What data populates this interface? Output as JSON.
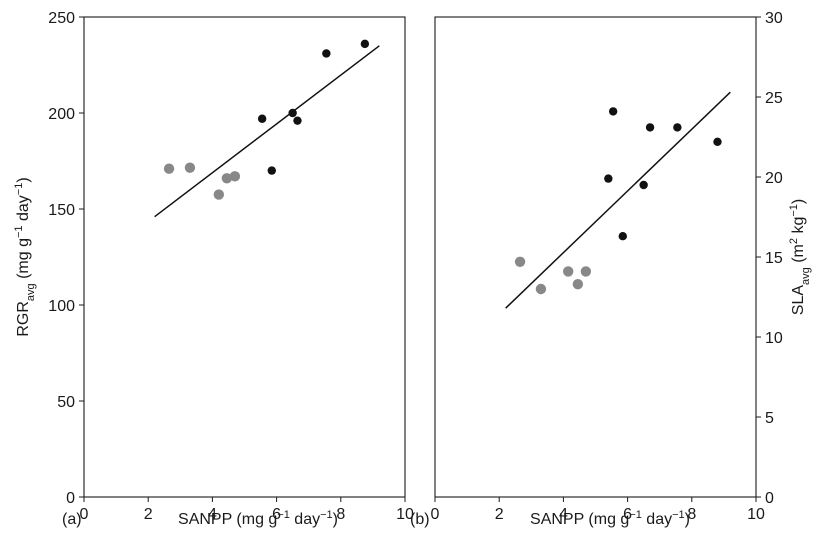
{
  "chart_data": [
    {
      "type": "scatter",
      "panel_label": "(a)",
      "xlabel": {
        "main": "SANPP (mg g",
        "sup1": "−1",
        "mid": " day",
        "sup2": "−1",
        "end": ")"
      },
      "ylabel": {
        "main": "RGR",
        "sub": "avg",
        "mid": " (mg g",
        "sup1": "−1",
        "mid2": " day",
        "sup2": "−1",
        "end": ")"
      },
      "xlim": [
        0,
        10
      ],
      "ylim": [
        0,
        250
      ],
      "xticks": [
        0,
        2,
        4,
        6,
        8,
        10
      ],
      "yticks": [
        0,
        50,
        100,
        150,
        200,
        250
      ],
      "y_axis_side": "left",
      "series": [
        {
          "color": "#888888",
          "x": [
            2.65,
            3.3,
            4.2,
            4.45,
            4.7
          ],
          "y": [
            171,
            171.5,
            157.5,
            166,
            167
          ]
        },
        {
          "color": "#111111",
          "x": [
            5.55,
            5.85,
            6.5,
            6.65,
            7.55,
            8.75
          ],
          "y": [
            197,
            170,
            200,
            196,
            231,
            236
          ]
        }
      ],
      "fit_line": {
        "x": [
          2.2,
          9.2
        ],
        "y": [
          146,
          235
        ]
      }
    },
    {
      "type": "scatter",
      "panel_label": "(b)",
      "xlabel": {
        "main": "SANPP (mg g",
        "sup1": "−1",
        "mid": " day",
        "sup2": "−1",
        "end": ")"
      },
      "ylabel": {
        "main": "SLA",
        "sub": "avg",
        "mid": " (m",
        "sup1": "2",
        "mid2": " kg",
        "sup2": "−1",
        "end": ")"
      },
      "xlim": [
        0,
        10
      ],
      "ylim": [
        0,
        30
      ],
      "xticks": [
        0,
        2,
        4,
        6,
        8,
        10
      ],
      "yticks": [
        0,
        5,
        10,
        15,
        20,
        25,
        30
      ],
      "y_axis_side": "right",
      "series": [
        {
          "color": "#888888",
          "x": [
            2.65,
            3.3,
            4.15,
            4.45,
            4.7
          ],
          "y": [
            14.7,
            13.0,
            14.1,
            13.3,
            14.1
          ]
        },
        {
          "color": "#111111",
          "x": [
            5.4,
            5.55,
            5.85,
            6.5,
            6.7,
            7.55,
            8.8
          ],
          "y": [
            19.9,
            24.1,
            16.3,
            19.5,
            23.1,
            23.1,
            22.2
          ]
        }
      ],
      "fit_line": {
        "x": [
          2.2,
          9.2
        ],
        "y": [
          11.8,
          25.3
        ]
      }
    }
  ]
}
